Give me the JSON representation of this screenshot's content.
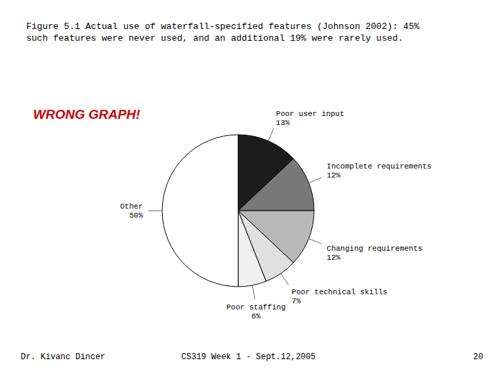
{
  "chart_data": {
    "type": "pie",
    "title": "Figure 5.1 Actual use of waterfall-specified features (Johnson 2002): 45%",
    "subtitle": "such features were never used, and an additional 19% were rarely used.",
    "categories": [
      "Poor user input",
      "Incomplete requirements",
      "Changing requirements",
      "Poor technical skills",
      "Poor staffing",
      "Other"
    ],
    "values": [
      13,
      12,
      12,
      7,
      6,
      50
    ],
    "value_labels": [
      "13%",
      "12%",
      "12%",
      "7%",
      "6%",
      "50%"
    ],
    "colors": [
      "#1c1c1c",
      "#787878",
      "#b8b8b8",
      "#e0e0e0",
      "#f0f0f0",
      "#ffffff"
    ],
    "data_labels": true,
    "annotations": [
      {
        "text": "WRONG GRAPH!",
        "color": "#cc0000"
      },
      {
        "text": "Dr. Kivanc Dincer"
      },
      {
        "text": "CS319 Week 1 - Sept.12,2005"
      },
      {
        "text": "20"
      }
    ]
  }
}
